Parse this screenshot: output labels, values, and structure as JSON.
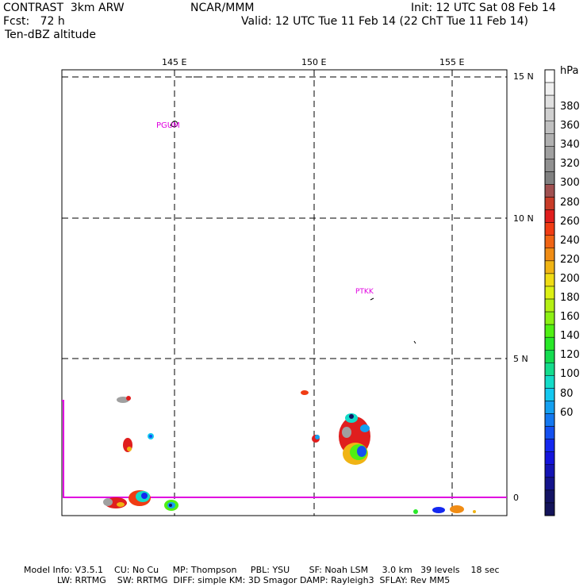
{
  "header": {
    "model": "CONTRAST  3km ARW",
    "org": "NCAR/MMM",
    "init": "Init: 12 UTC Sat 08 Feb 14",
    "fcst": "Fcst:   72 h",
    "valid": "Valid: 12 UTC Tue 11 Feb 14 (22 ChT Tue 11 Feb 14)",
    "field": "Ten-dBZ altitude"
  },
  "map": {
    "lon_labels": [
      "145 E",
      "150 E",
      "155 E"
    ],
    "lat_labels": [
      "15 N",
      "10 N",
      "5 N",
      "0"
    ],
    "stations": [
      {
        "id": "PGUM"
      },
      {
        "id": "PTKK"
      }
    ]
  },
  "colorbar": {
    "unit": "hPa",
    "labels": [
      "380",
      "360",
      "340",
      "320",
      "300",
      "280",
      "260",
      "240",
      "220",
      "200",
      "180",
      "160",
      "140",
      "120",
      "100",
      "80",
      "60"
    ],
    "colors": [
      "#ffffff",
      "#f0f0f0",
      "#e0e0e0",
      "#d0d0d0",
      "#c0c0c0",
      "#b0b0b0",
      "#a0a0a0",
      "#909090",
      "#808080",
      "#a05050",
      "#c83c28",
      "#e01e1e",
      "#f03c14",
      "#f06414",
      "#f08c14",
      "#f0b414",
      "#f0dc14",
      "#dcf014",
      "#b4f014",
      "#8cf014",
      "#50f014",
      "#28e828",
      "#14dc50",
      "#14dc8c",
      "#14dcc8",
      "#14c8f0",
      "#14a0f0",
      "#1478f0",
      "#1450f0",
      "#1428f0",
      "#1414dc",
      "#1414b4",
      "#14148c",
      "#141464",
      "#14145a"
    ]
  },
  "footer": {
    "line1": "Model Info: V3.5.1    CU: No Cu     MP: Thompson     PBL: YSU       SF: Noah LSM     3.0 km   39 levels    18 sec",
    "line2": "LW: RRTMG    SW: RRTMG  DIFF: simple KM: 3D Smagor DAMP: Rayleigh3  SFLAY: Rev MM5"
  }
}
